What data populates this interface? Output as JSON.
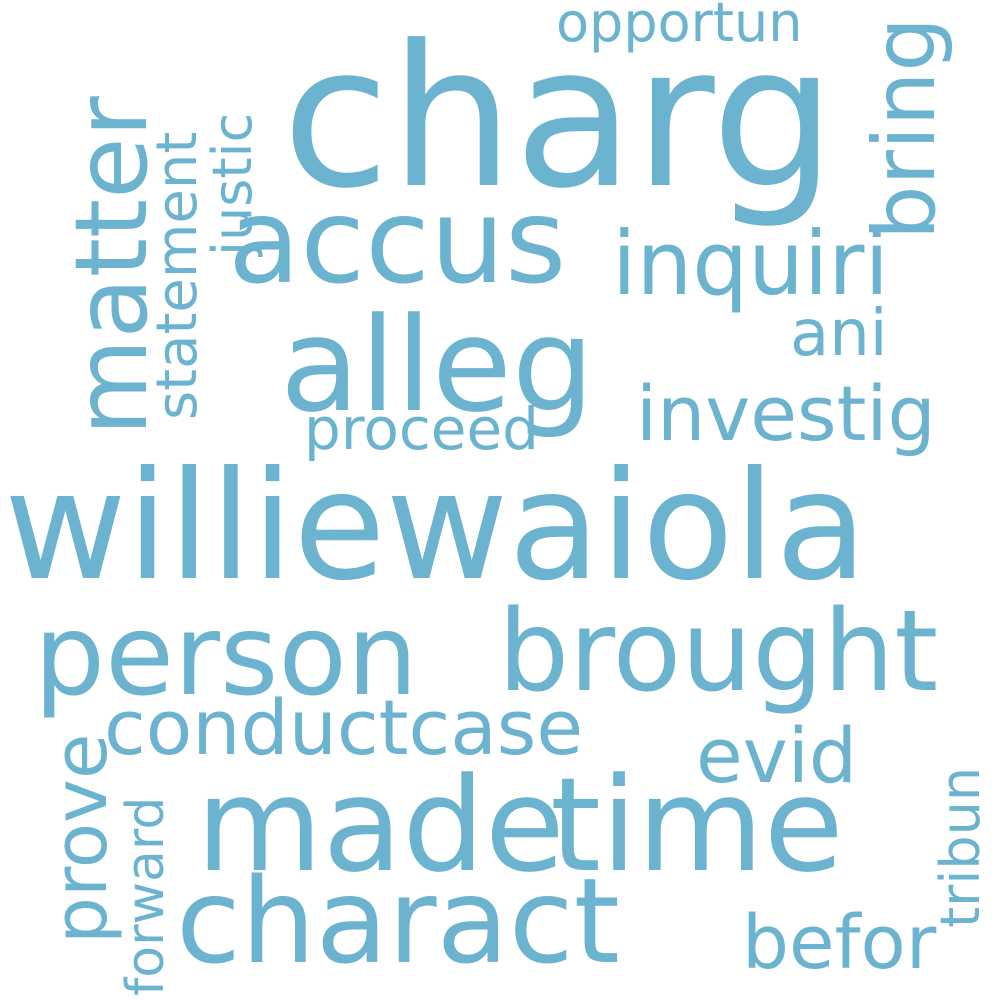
{
  "word_cloud": {
    "color": "#6bb3cf",
    "background": "#ffffff",
    "words": {
      "charg": "charg",
      "accus": "accus",
      "inquiri": "inquiri",
      "alleg": "alleg",
      "ani": "ani",
      "investig": "investig",
      "proceed": "proceed",
      "opportun": "opportun",
      "williewaiola": "williewaiola",
      "person": "person",
      "brought": "brought",
      "conductcase": "conductcase",
      "evid": "evid",
      "made": "made",
      "time": "time",
      "charact": "charact",
      "befor": "befor",
      "matter": "matter",
      "statement": "statement",
      "justic": "justic",
      "bring": "bring",
      "prove": "prove",
      "forward": "forward",
      "tribun": "tribun"
    }
  }
}
